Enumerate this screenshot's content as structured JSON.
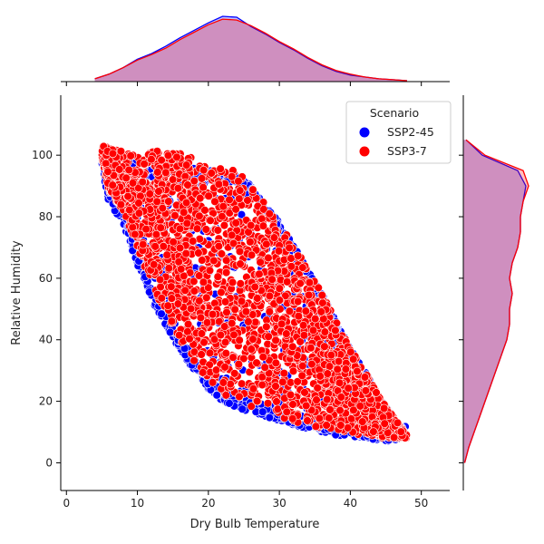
{
  "chart_data": {
    "type": "scatter",
    "kind": "jointplot",
    "xlabel": "Dry Bulb Temperature",
    "ylabel": "Relative Humidity",
    "xlim": [
      -0.8,
      54
    ],
    "ylim": [
      -9,
      119.5
    ],
    "xticks": [
      0,
      10,
      20,
      30,
      40,
      50
    ],
    "yticks": [
      0,
      20,
      40,
      60,
      80,
      100
    ],
    "legend": {
      "title": "Scenario",
      "placement": "top-right",
      "entries": [
        {
          "name": "SSP2-45",
          "color": "#0000ff"
        },
        {
          "name": "SSP3-7",
          "color": "#ff0000"
        }
      ]
    },
    "series": [
      {
        "name": "SSP2-45",
        "color": "#0000ff",
        "region": {
          "upper": [
            [
              5,
              101
            ],
            [
              10,
              99
            ],
            [
              15,
              97
            ],
            [
              20,
              95
            ],
            [
              24,
              94
            ],
            [
              26,
              90
            ],
            [
              30,
              78
            ],
            [
              33,
              67
            ],
            [
              36,
              55
            ],
            [
              38,
              46
            ],
            [
              40,
              37
            ],
            [
              42,
              30
            ],
            [
              44,
              22
            ],
            [
              46,
              15
            ],
            [
              48,
              9
            ]
          ],
          "lower": [
            [
              5,
              96
            ],
            [
              6,
              84
            ],
            [
              8,
              78
            ],
            [
              10,
              64
            ],
            [
              12,
              53
            ],
            [
              14,
              44
            ],
            [
              16,
              37
            ],
            [
              18,
              30
            ],
            [
              20,
              24
            ],
            [
              22,
              20
            ],
            [
              25,
              17
            ],
            [
              28,
              15
            ],
            [
              31,
              13
            ],
            [
              34,
              11
            ],
            [
              38,
              9
            ],
            [
              42,
              8
            ],
            [
              45,
              7
            ],
            [
              48,
              8
            ]
          ]
        }
      },
      {
        "name": "SSP3-7",
        "color": "#ff0000",
        "region": {
          "upper": [
            [
              5,
              103
            ],
            [
              10,
              100
            ],
            [
              14,
              102
            ],
            [
              17,
              100
            ],
            [
              20,
              96
            ],
            [
              24,
              95
            ],
            [
              26,
              90
            ],
            [
              30,
              78
            ],
            [
              33,
              67
            ],
            [
              36,
              55
            ],
            [
              38,
              46
            ],
            [
              40,
              37
            ],
            [
              42,
              30
            ],
            [
              44,
              22
            ],
            [
              46,
              15
            ],
            [
              48,
              9
            ]
          ],
          "lower": [
            [
              5,
              99
            ],
            [
              6,
              88
            ],
            [
              8,
              82
            ],
            [
              10,
              70
            ],
            [
              12,
              58
            ],
            [
              14,
              48
            ],
            [
              16,
              40
            ],
            [
              18,
              33
            ],
            [
              20,
              27
            ],
            [
              22,
              22
            ],
            [
              25,
              19
            ],
            [
              28,
              17
            ],
            [
              31,
              14
            ],
            [
              34,
              12
            ],
            [
              38,
              10
            ],
            [
              42,
              9
            ],
            [
              45,
              8
            ],
            [
              48,
              8
            ]
          ]
        }
      }
    ],
    "marginal_x": {
      "x": [
        4,
        6,
        8,
        10,
        12,
        14,
        16,
        18,
        20,
        22,
        24,
        26,
        28,
        30,
        32,
        34,
        36,
        38,
        40,
        42,
        44,
        46,
        48
      ],
      "series": [
        {
          "name": "SSP2-45",
          "density": [
            0.003,
            0.008,
            0.015,
            0.024,
            0.03,
            0.038,
            0.047,
            0.055,
            0.063,
            0.07,
            0.069,
            0.059,
            0.051,
            0.042,
            0.034,
            0.025,
            0.017,
            0.011,
            0.007,
            0.005,
            0.003,
            0.002,
            0.001
          ]
        },
        {
          "name": "SSP3-7",
          "density": [
            0.003,
            0.008,
            0.015,
            0.023,
            0.029,
            0.036,
            0.045,
            0.053,
            0.061,
            0.067,
            0.066,
            0.06,
            0.052,
            0.043,
            0.035,
            0.026,
            0.018,
            0.012,
            0.008,
            0.005,
            0.003,
            0.002,
            0.001
          ]
        }
      ]
    },
    "marginal_y": {
      "y": [
        0,
        5,
        10,
        15,
        20,
        25,
        30,
        35,
        40,
        45,
        50,
        55,
        60,
        65,
        70,
        75,
        80,
        85,
        90,
        95,
        100,
        105
      ],
      "series": [
        {
          "name": "SSP2-45",
          "density": [
            0.0005,
            0.002,
            0.004,
            0.006,
            0.008,
            0.01,
            0.012,
            0.014,
            0.016,
            0.017,
            0.017,
            0.018,
            0.017,
            0.018,
            0.02,
            0.021,
            0.021,
            0.022,
            0.023,
            0.02,
            0.007,
            0.001
          ]
        },
        {
          "name": "SSP3-7",
          "density": [
            0.0005,
            0.002,
            0.004,
            0.006,
            0.008,
            0.01,
            0.012,
            0.014,
            0.016,
            0.017,
            0.017,
            0.018,
            0.017,
            0.018,
            0.02,
            0.021,
            0.021,
            0.022,
            0.024,
            0.022,
            0.008,
            0.001
          ]
        }
      ]
    }
  }
}
